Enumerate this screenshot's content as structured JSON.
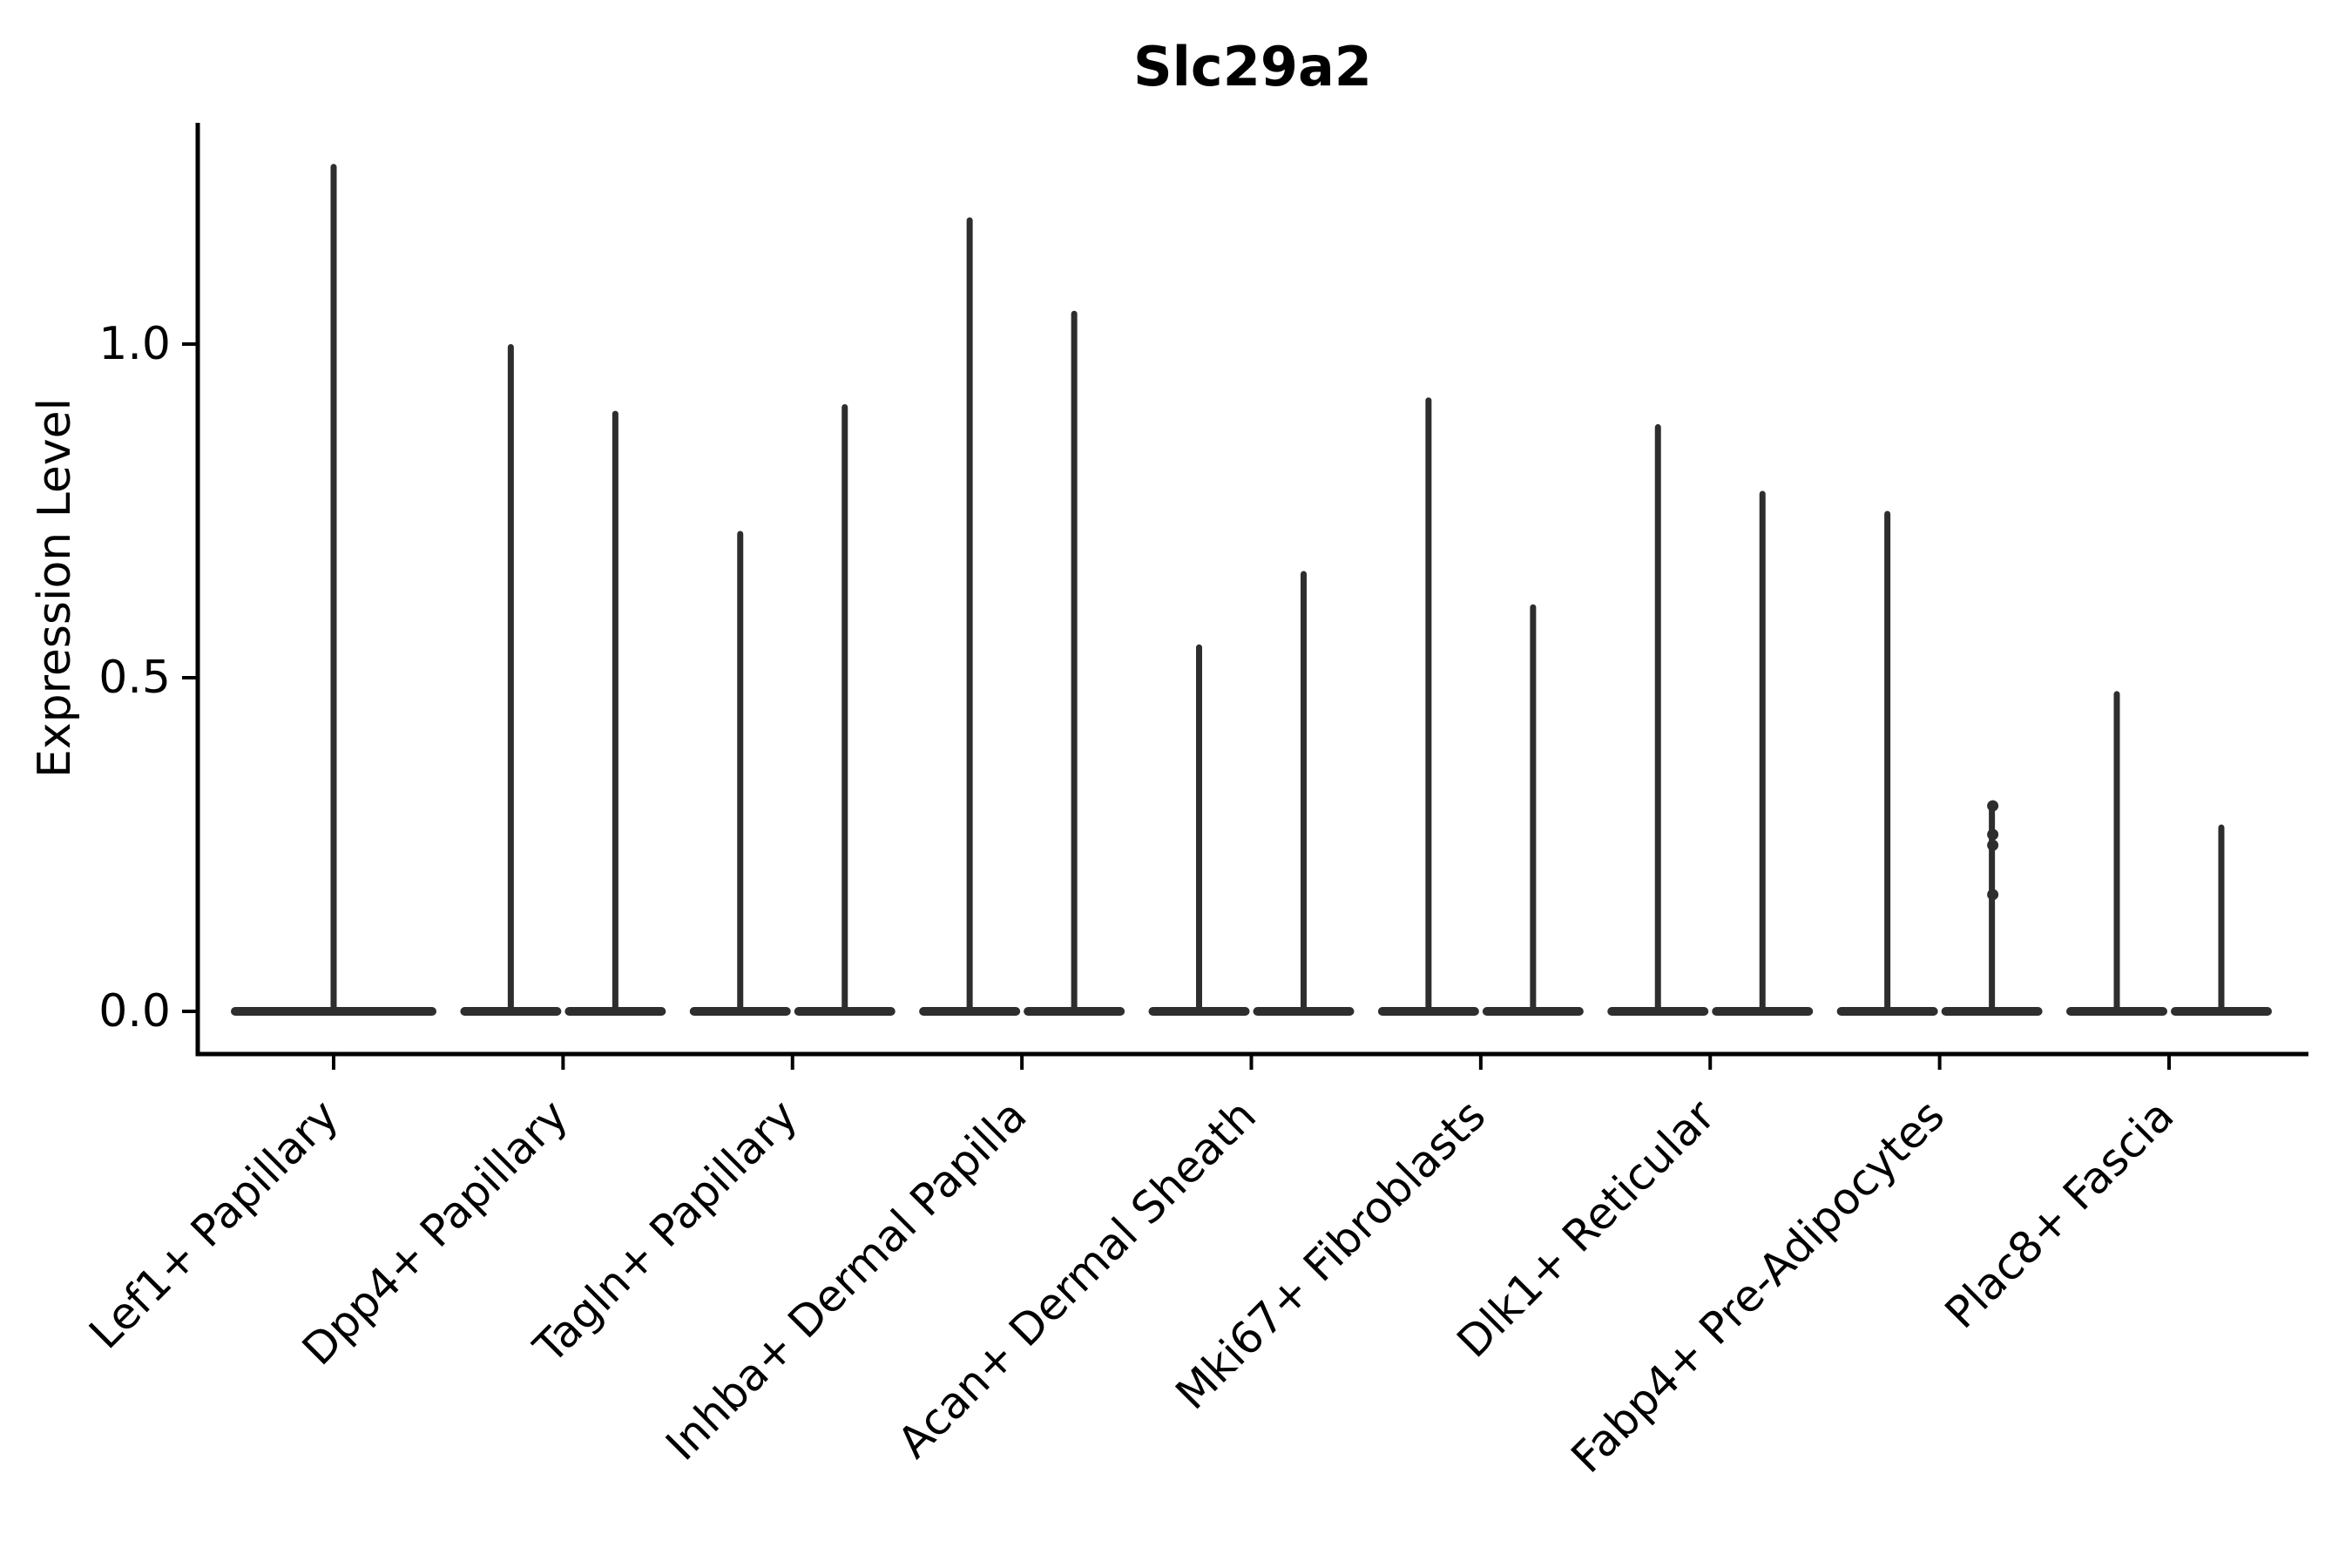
{
  "chart_data": {
    "type": "violin",
    "title": "Slc29a2",
    "ylabel": "Expression Level",
    "xlabel": "",
    "ylim": [
      -0.065,
      1.33
    ],
    "ytick_labels": [
      "0.0",
      "0.5",
      "1.0"
    ],
    "ytick_values": [
      0.0,
      0.5,
      1.0
    ],
    "xtick_rotation_deg": 45,
    "grid": false,
    "legend": null,
    "violin_color": "#2e2e2e",
    "axis_color": "#000000",
    "shape_note": "Each violin collapses to a flat pancake at expression 0 with a thin density needle rising to the max expression value; first category has one full-width violin, all others have two half-width violins.",
    "categories": [
      {
        "label": "Lef1+ Papillary",
        "violin_max": [
          1.27
        ]
      },
      {
        "label": "Dpp4+ Papillary",
        "violin_max": [
          1.0,
          0.9
        ]
      },
      {
        "label": "Tagln+ Papillary",
        "violin_max": [
          0.72,
          0.91
        ]
      },
      {
        "label": "Inhba+ Dermal Papilla",
        "violin_max": [
          1.19,
          1.05
        ]
      },
      {
        "label": "Acan+ Dermal Sheath",
        "violin_max": [
          0.55,
          0.66
        ]
      },
      {
        "label": "Mki67+ Fibroblasts",
        "violin_max": [
          0.92,
          0.61
        ]
      },
      {
        "label": "Dlk1+ Reticular",
        "violin_max": [
          0.88,
          0.78
        ]
      },
      {
        "label": "Fabp4+ Pre-Adipocytes",
        "violin_max": [
          0.75,
          0.31
        ],
        "jitter_points": [
          [
            1,
            0.308
          ],
          [
            1,
            0.265
          ],
          [
            1,
            0.249
          ],
          [
            1,
            0.175
          ]
        ]
      },
      {
        "label": "Plac8+ Fascia",
        "violin_max": [
          0.48,
          0.28
        ]
      }
    ]
  }
}
